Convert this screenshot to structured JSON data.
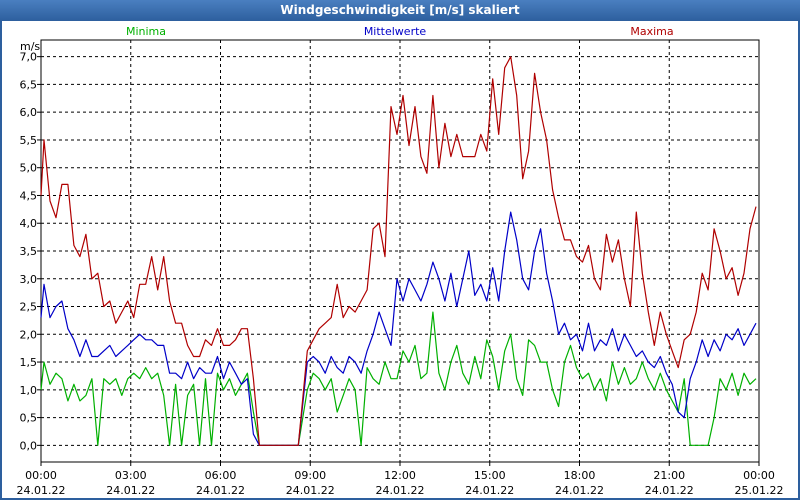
{
  "window": {
    "title": "Windgeschwindigkeit [m/s] skaliert"
  },
  "colors": {
    "minima": "#00b000",
    "mittelwerte": "#0000c8",
    "maxima": "#b00000",
    "grid": "#000000",
    "title_bg": "#2d5f9e"
  },
  "chart_data": {
    "type": "line",
    "title": "Windgeschwindigkeit [m/s] skaliert",
    "ylabel": "m/s",
    "ylim": [
      -0.3,
      7.3
    ],
    "yticks": [
      "0,0",
      "0,5",
      "1,0",
      "1,5",
      "2,0",
      "2,5",
      "3,0",
      "3,5",
      "4,0",
      "4,5",
      "5,0",
      "5,5",
      "6,0",
      "6,5",
      "7,0"
    ],
    "xlim": [
      0,
      24
    ],
    "xticks": [
      {
        "time": "00:00",
        "date": "24.01.22"
      },
      {
        "time": "03:00",
        "date": "24.01.22"
      },
      {
        "time": "06:00",
        "date": "24.01.22"
      },
      {
        "time": "09:00",
        "date": "24.01.22"
      },
      {
        "time": "12:00",
        "date": "24.01.22"
      },
      {
        "time": "15:00",
        "date": "24.01.22"
      },
      {
        "time": "18:00",
        "date": "24.01.22"
      },
      {
        "time": "21:00",
        "date": "24.01.22"
      },
      {
        "time": "00:00",
        "date": "25.01.22"
      }
    ],
    "series": [
      {
        "name": "Minima",
        "x": [
          0,
          0.1,
          0.3,
          0.5,
          0.7,
          0.9,
          1.1,
          1.3,
          1.5,
          1.7,
          1.9,
          2.1,
          2.3,
          2.5,
          2.7,
          2.9,
          3.1,
          3.3,
          3.5,
          3.7,
          3.9,
          4.1,
          4.3,
          4.5,
          4.7,
          4.9,
          5.1,
          5.3,
          5.5,
          5.7,
          5.9,
          6.1,
          6.3,
          6.5,
          6.7,
          6.9,
          7.1,
          7.3,
          7.5,
          7.7,
          8.0,
          8.3,
          8.6,
          8.9,
          9.1,
          9.3,
          9.5,
          9.7,
          9.9,
          10.1,
          10.3,
          10.5,
          10.7,
          10.9,
          11.1,
          11.3,
          11.5,
          11.7,
          11.9,
          12.1,
          12.3,
          12.5,
          12.7,
          12.9,
          13.1,
          13.3,
          13.5,
          13.7,
          13.9,
          14.1,
          14.3,
          14.5,
          14.7,
          14.9,
          15.1,
          15.3,
          15.5,
          15.7,
          15.9,
          16.1,
          16.3,
          16.5,
          16.7,
          16.9,
          17.1,
          17.3,
          17.5,
          17.7,
          17.9,
          18.1,
          18.3,
          18.5,
          18.7,
          18.9,
          19.1,
          19.3,
          19.5,
          19.7,
          19.9,
          20.1,
          20.3,
          20.5,
          20.7,
          20.9,
          21.1,
          21.3,
          21.5,
          21.7,
          21.9,
          22.1,
          22.3,
          22.5,
          22.7,
          22.9,
          23.1,
          23.3,
          23.5,
          23.7,
          23.9
        ],
        "values": [
          1.0,
          1.5,
          1.1,
          1.3,
          1.2,
          0.8,
          1.1,
          0.8,
          0.9,
          1.2,
          0.0,
          1.2,
          1.1,
          1.2,
          0.9,
          1.2,
          1.3,
          1.2,
          1.4,
          1.2,
          1.3,
          0.9,
          0.0,
          1.1,
          0.0,
          0.9,
          1.1,
          0.0,
          1.2,
          0.0,
          1.3,
          1.0,
          1.2,
          0.9,
          1.1,
          1.3,
          0.6,
          0.0,
          0.0,
          0.0,
          0.0,
          0.0,
          0.0,
          1.0,
          1.3,
          1.2,
          1.0,
          1.2,
          0.6,
          0.9,
          1.2,
          1.0,
          0.0,
          1.4,
          1.2,
          1.1,
          1.5,
          1.2,
          1.2,
          1.7,
          1.5,
          1.8,
          1.2,
          1.3,
          2.4,
          1.3,
          1.0,
          1.5,
          1.8,
          1.3,
          1.1,
          1.6,
          1.2,
          1.9,
          1.6,
          1.0,
          1.7,
          2.0,
          1.2,
          0.9,
          1.9,
          1.8,
          1.5,
          1.5,
          1.0,
          0.7,
          1.5,
          1.8,
          1.4,
          1.2,
          1.3,
          1.0,
          1.2,
          0.8,
          1.5,
          1.1,
          1.4,
          1.1,
          1.2,
          1.5,
          1.2,
          1.0,
          1.3,
          1.0,
          0.8,
          0.6,
          1.2,
          0.0,
          0.0,
          0.0,
          0.0,
          0.5,
          1.2,
          1.0,
          1.3,
          0.9,
          1.3,
          1.1,
          1.2
        ]
      },
      {
        "name": "Mittelwerte",
        "x": [
          0,
          0.1,
          0.3,
          0.5,
          0.7,
          0.9,
          1.1,
          1.3,
          1.5,
          1.7,
          1.9,
          2.1,
          2.3,
          2.5,
          2.7,
          2.9,
          3.1,
          3.3,
          3.5,
          3.7,
          3.9,
          4.1,
          4.3,
          4.5,
          4.7,
          4.9,
          5.1,
          5.3,
          5.5,
          5.7,
          5.9,
          6.1,
          6.3,
          6.5,
          6.7,
          6.9,
          7.1,
          7.3,
          7.5,
          7.7,
          8.0,
          8.3,
          8.6,
          8.9,
          9.1,
          9.3,
          9.5,
          9.7,
          9.9,
          10.1,
          10.3,
          10.5,
          10.7,
          10.9,
          11.1,
          11.3,
          11.5,
          11.7,
          11.9,
          12.1,
          12.3,
          12.5,
          12.7,
          12.9,
          13.1,
          13.3,
          13.5,
          13.7,
          13.9,
          14.1,
          14.3,
          14.5,
          14.7,
          14.9,
          15.1,
          15.3,
          15.5,
          15.7,
          15.9,
          16.1,
          16.3,
          16.5,
          16.7,
          16.9,
          17.1,
          17.3,
          17.5,
          17.7,
          17.9,
          18.1,
          18.3,
          18.5,
          18.7,
          18.9,
          19.1,
          19.3,
          19.5,
          19.7,
          19.9,
          20.1,
          20.3,
          20.5,
          20.7,
          20.9,
          21.1,
          21.3,
          21.5,
          21.7,
          21.9,
          22.1,
          22.3,
          22.5,
          22.7,
          22.9,
          23.1,
          23.3,
          23.5,
          23.7,
          23.9
        ],
        "values": [
          2.3,
          2.9,
          2.3,
          2.5,
          2.6,
          2.1,
          1.9,
          1.6,
          1.9,
          1.6,
          1.6,
          1.7,
          1.8,
          1.6,
          1.7,
          1.8,
          1.9,
          2.0,
          1.9,
          1.9,
          1.8,
          1.8,
          1.3,
          1.3,
          1.2,
          1.5,
          1.2,
          1.4,
          1.3,
          1.3,
          1.6,
          1.2,
          1.5,
          1.3,
          1.1,
          1.2,
          0.2,
          0.0,
          0.0,
          0.0,
          0.0,
          0.0,
          0.0,
          1.5,
          1.6,
          1.5,
          1.3,
          1.6,
          1.4,
          1.3,
          1.6,
          1.5,
          1.3,
          1.7,
          2.0,
          2.4,
          2.1,
          1.8,
          3.0,
          2.6,
          3.0,
          2.8,
          2.6,
          2.9,
          3.3,
          3.0,
          2.6,
          3.1,
          2.5,
          3.0,
          3.5,
          2.7,
          2.9,
          2.6,
          3.2,
          2.6,
          3.5,
          4.2,
          3.7,
          3.0,
          2.8,
          3.5,
          3.9,
          3.1,
          2.6,
          2.0,
          2.2,
          1.9,
          2.0,
          1.7,
          2.2,
          1.7,
          1.9,
          1.8,
          2.1,
          1.7,
          2.0,
          1.8,
          1.6,
          1.7,
          1.5,
          1.4,
          1.6,
          1.3,
          1.1,
          0.6,
          0.5,
          1.2,
          1.5,
          1.9,
          1.6,
          1.9,
          1.7,
          2.0,
          1.9,
          2.1,
          1.8,
          2.0,
          2.2
        ]
      },
      {
        "name": "Maxima",
        "x": [
          0,
          0.1,
          0.3,
          0.5,
          0.7,
          0.9,
          1.1,
          1.3,
          1.5,
          1.7,
          1.9,
          2.1,
          2.3,
          2.5,
          2.7,
          2.9,
          3.1,
          3.3,
          3.5,
          3.7,
          3.9,
          4.1,
          4.3,
          4.5,
          4.7,
          4.9,
          5.1,
          5.3,
          5.5,
          5.7,
          5.9,
          6.1,
          6.3,
          6.5,
          6.7,
          6.9,
          7.1,
          7.3,
          7.5,
          7.7,
          8.0,
          8.3,
          8.6,
          8.9,
          9.1,
          9.3,
          9.5,
          9.7,
          9.9,
          10.1,
          10.3,
          10.5,
          10.7,
          10.9,
          11.1,
          11.3,
          11.5,
          11.7,
          11.9,
          12.1,
          12.3,
          12.5,
          12.7,
          12.9,
          13.1,
          13.3,
          13.5,
          13.7,
          13.9,
          14.1,
          14.3,
          14.5,
          14.7,
          14.9,
          15.1,
          15.3,
          15.5,
          15.7,
          15.9,
          16.1,
          16.3,
          16.5,
          16.7,
          16.9,
          17.1,
          17.3,
          17.5,
          17.7,
          17.9,
          18.1,
          18.3,
          18.5,
          18.7,
          18.9,
          19.1,
          19.3,
          19.5,
          19.7,
          19.9,
          20.1,
          20.3,
          20.5,
          20.7,
          20.9,
          21.1,
          21.3,
          21.5,
          21.7,
          21.9,
          22.1,
          22.3,
          22.5,
          22.7,
          22.9,
          23.1,
          23.3,
          23.5,
          23.7,
          23.9
        ],
        "values": [
          4.5,
          5.5,
          4.4,
          4.1,
          4.7,
          4.7,
          3.6,
          3.4,
          3.8,
          3.0,
          3.1,
          2.5,
          2.6,
          2.2,
          2.4,
          2.6,
          2.3,
          2.9,
          2.9,
          3.4,
          2.8,
          3.4,
          2.6,
          2.2,
          2.2,
          1.8,
          1.6,
          1.6,
          1.9,
          1.8,
          2.1,
          1.8,
          1.8,
          1.9,
          2.1,
          2.1,
          1.2,
          0.0,
          0.0,
          0.0,
          0.0,
          0.0,
          0.0,
          1.7,
          1.9,
          2.1,
          2.2,
          2.3,
          2.9,
          2.3,
          2.5,
          2.4,
          2.6,
          2.8,
          3.9,
          4.0,
          3.4,
          6.1,
          5.6,
          6.3,
          5.4,
          6.1,
          5.2,
          4.9,
          6.3,
          5.0,
          5.8,
          5.2,
          5.6,
          5.2,
          5.2,
          5.2,
          5.6,
          5.3,
          6.6,
          5.6,
          6.8,
          7.0,
          6.3,
          4.8,
          5.3,
          6.7,
          6.0,
          5.5,
          4.6,
          4.1,
          3.7,
          3.7,
          3.4,
          3.3,
          3.6,
          3.0,
          2.8,
          3.8,
          3.3,
          3.7,
          3.0,
          2.5,
          4.2,
          3.1,
          2.4,
          1.8,
          2.4,
          2.0,
          1.7,
          1.4,
          1.9,
          2.0,
          2.4,
          3.1,
          2.8,
          3.9,
          3.5,
          3.0,
          3.2,
          2.7,
          3.1,
          3.9,
          4.3
        ]
      }
    ]
  }
}
